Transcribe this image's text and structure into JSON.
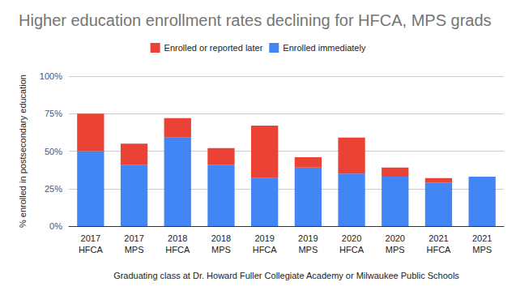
{
  "chart_data": {
    "type": "bar",
    "title": "Higher education enrollment rates declining for HFCA, MPS grads",
    "x_label": "Graduating class at Dr. Howard Fuller Collegiate Academy or Milwaukee Public Schools",
    "y_label": "% enrolled in postsecondary education",
    "categories": [
      "2017 HFCA",
      "2017 MPS",
      "2018 HFCA",
      "2018 MPS",
      "2019 HFCA",
      "2019 MPS",
      "2020 HFCA",
      "2020 MPS",
      "2021 HFCA",
      "2021 MPS"
    ],
    "series": [
      {
        "name": "Enrolled immediately",
        "color": "#4285f4",
        "values": [
          50,
          41,
          59,
          41,
          32,
          39,
          35,
          33,
          29,
          33
        ]
      },
      {
        "name": "Enrolled or reported later",
        "color": "#ea4335",
        "values": [
          25,
          14,
          13,
          11,
          35,
          7,
          24,
          6,
          3,
          0
        ]
      }
    ],
    "stacked": true,
    "ylim": [
      0,
      100
    ],
    "yticks": [
      {
        "value": 0,
        "label": "0%"
      },
      {
        "value": 25,
        "label": "25%"
      },
      {
        "value": 50,
        "label": "50%"
      },
      {
        "value": 75,
        "label": "75%"
      },
      {
        "value": 100,
        "label": "100%"
      }
    ],
    "grid": true,
    "legend": "top"
  }
}
